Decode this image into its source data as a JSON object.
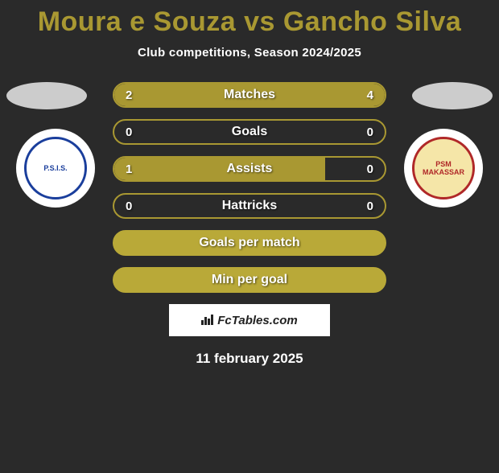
{
  "title_color": "#a99832",
  "subtitle_color": "#ffffff",
  "title": "Moura e Souza vs Gancho Silva",
  "subtitle": "Club competitions, Season 2024/2025",
  "oval_left_color": "#cccccc",
  "oval_right_color": "#cccccc",
  "logo_left": {
    "text": "P.S.I.S.",
    "text_color": "#1a3e9c",
    "circle_border": "#1a3e9c"
  },
  "logo_right": {
    "text": "PSM MAKASSAR",
    "text_color": "#b02828",
    "circle_bg": "#f5e6a8",
    "circle_border": "#b02828"
  },
  "bars": [
    {
      "label": "Matches",
      "left_val": "2",
      "right_val": "4",
      "left_num": 2,
      "right_num": 4,
      "border": "#a99832",
      "fill_color": "#a99832",
      "left_pct": 33.3,
      "right_pct": 66.7,
      "show_fill": true
    },
    {
      "label": "Goals",
      "left_val": "0",
      "right_val": "0",
      "left_num": 0,
      "right_num": 0,
      "border": "#a99832",
      "fill_color": "#a99832",
      "left_pct": 0,
      "right_pct": 0,
      "show_fill": false
    },
    {
      "label": "Assists",
      "left_val": "1",
      "right_val": "0",
      "left_num": 1,
      "right_num": 0,
      "border": "#a99832",
      "fill_color": "#a99832",
      "left_pct": 78,
      "right_pct": 0,
      "show_fill": true
    },
    {
      "label": "Hattricks",
      "left_val": "0",
      "right_val": "0",
      "left_num": 0,
      "right_num": 0,
      "border": "#a99832",
      "fill_color": "#a99832",
      "left_pct": 0,
      "right_pct": 0,
      "show_fill": false
    },
    {
      "label": "Goals per match",
      "left_val": "",
      "right_val": "",
      "left_num": 0,
      "right_num": 0,
      "border": "#b9a938",
      "fill_color": "#b9a938",
      "left_pct": 100,
      "right_pct": 0,
      "show_fill": true,
      "full_fill": true
    },
    {
      "label": "Min per goal",
      "left_val": "",
      "right_val": "",
      "left_num": 0,
      "right_num": 0,
      "border": "#b9a938",
      "fill_color": "#b9a938",
      "left_pct": 100,
      "right_pct": 0,
      "show_fill": true,
      "full_fill": true
    }
  ],
  "watermark": "FcTables.com",
  "date": "11 february 2025",
  "bg_color": "#2a2a2a",
  "text_shadow": "rgba(0,0,0,0.6)"
}
